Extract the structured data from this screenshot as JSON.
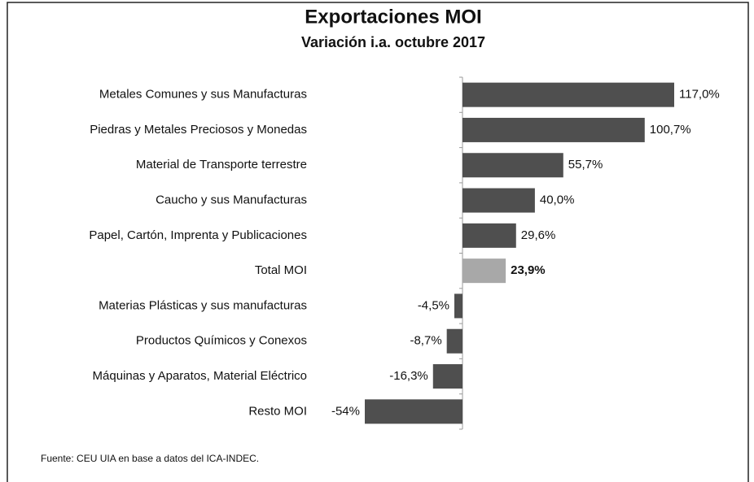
{
  "chart_data": {
    "type": "hbar",
    "title": "Exportaciones MOI",
    "subtitle": "Variación i.a. octubre 2017",
    "categories": [
      "Metales Comunes y sus Manufacturas",
      "Piedras y Metales Preciosos y Monedas",
      "Material de Transporte terrestre",
      "Caucho y sus Manufacturas",
      "Papel, Cartón, Imprenta y Publicaciones",
      "Total MOI",
      "Materias Plásticas y sus manufacturas",
      "Productos Químicos y Conexos",
      "Máquinas y Aparatos, Material Eléctrico",
      "Resto MOI"
    ],
    "values": [
      117.0,
      100.7,
      55.7,
      40.0,
      29.6,
      23.9,
      -4.5,
      -8.7,
      -16.3,
      -54
    ],
    "value_labels": [
      "117,0%",
      "100,7%",
      "55,7%",
      "40,0%",
      "29,6%",
      "23,9%",
      "-4,5%",
      "-8,7%",
      "-16,3%",
      "-54%"
    ],
    "colors": [
      "#4f4f4f",
      "#4f4f4f",
      "#4f4f4f",
      "#4f4f4f",
      "#4f4f4f",
      "#a8a8a8",
      "#4f4f4f",
      "#4f4f4f",
      "#4f4f4f",
      "#4f4f4f"
    ],
    "source": "Fuente: CEU UIA en base a datos del ICA-INDEC."
  }
}
